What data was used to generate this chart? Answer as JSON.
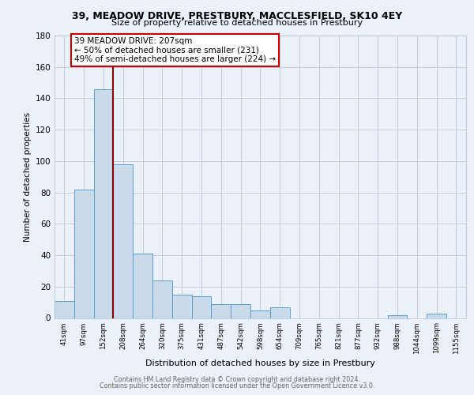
{
  "title": "39, MEADOW DRIVE, PRESTBURY, MACCLESFIELD, SK10 4EY",
  "subtitle": "Size of property relative to detached houses in Prestbury",
  "xlabel": "Distribution of detached houses by size in Prestbury",
  "ylabel": "Number of detached properties",
  "bar_labels": [
    "41sqm",
    "97sqm",
    "152sqm",
    "208sqm",
    "264sqm",
    "320sqm",
    "375sqm",
    "431sqm",
    "487sqm",
    "542sqm",
    "598sqm",
    "654sqm",
    "709sqm",
    "765sqm",
    "821sqm",
    "877sqm",
    "932sqm",
    "988sqm",
    "1044sqm",
    "1099sqm",
    "1155sqm"
  ],
  "bar_values": [
    11,
    82,
    146,
    98,
    41,
    24,
    15,
    14,
    9,
    9,
    5,
    7,
    0,
    0,
    0,
    0,
    0,
    2,
    0,
    3,
    0
  ],
  "bar_color": "#c9daea",
  "bar_edge_color": "#5a9ec9",
  "marker_color": "#8b0000",
  "annotation_title": "39 MEADOW DRIVE: 207sqm",
  "annotation_line1": "← 50% of detached houses are smaller (231)",
  "annotation_line2": "49% of semi-detached houses are larger (224) →",
  "annotation_box_color": "#ffffff",
  "annotation_box_edge": "#cc0000",
  "ylim": [
    0,
    180
  ],
  "yticks": [
    0,
    20,
    40,
    60,
    80,
    100,
    120,
    140,
    160,
    180
  ],
  "background_color": "#eaf1f8",
  "plot_background": "#eaf1f8",
  "footer_line1": "Contains HM Land Registry data © Crown copyright and database right 2024.",
  "footer_line2": "Contains public sector information licensed under the Open Government Licence v3.0."
}
